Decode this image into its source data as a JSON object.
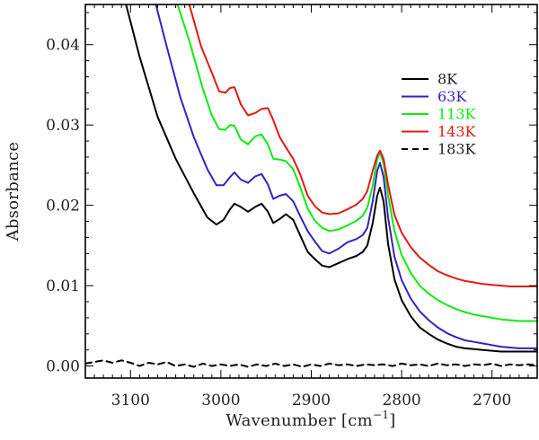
{
  "chart_data": {
    "type": "line",
    "title": "",
    "xlabel": "Wavenumber [cm",
    "xlabel_sup": "−1",
    "xlabel_close": "]",
    "ylabel": "Absorbance",
    "xlim": [
      3150,
      2650
    ],
    "ylim": [
      -0.0015,
      0.045
    ],
    "x_reversed": true,
    "grid": false,
    "legend_position": "top-right",
    "x_ticks": [
      3100,
      3000,
      2900,
      2800,
      2700
    ],
    "x_tick_labels": [
      "3100",
      "3000",
      "2900",
      "2800",
      "2700"
    ],
    "y_ticks": [
      0.0,
      0.01,
      0.02,
      0.03,
      0.04
    ],
    "y_tick_labels": [
      "0.00",
      "0.01",
      "0.02",
      "0.03",
      "0.04"
    ],
    "series": [
      {
        "name": "8K",
        "color": "#000000",
        "dash": "solid",
        "points": [
          [
            3105,
            0.045
          ],
          [
            3090,
            0.0385
          ],
          [
            3070,
            0.031
          ],
          [
            3050,
            0.0258
          ],
          [
            3030,
            0.0215
          ],
          [
            3015,
            0.0185
          ],
          [
            3005,
            0.0176
          ],
          [
            2997,
            0.0182
          ],
          [
            2990,
            0.0195
          ],
          [
            2985,
            0.0202
          ],
          [
            2978,
            0.0198
          ],
          [
            2970,
            0.0192
          ],
          [
            2962,
            0.0198
          ],
          [
            2955,
            0.0202
          ],
          [
            2948,
            0.0192
          ],
          [
            2942,
            0.0178
          ],
          [
            2935,
            0.0183
          ],
          [
            2928,
            0.0189
          ],
          [
            2920,
            0.0182
          ],
          [
            2912,
            0.0162
          ],
          [
            2904,
            0.0142
          ],
          [
            2896,
            0.0133
          ],
          [
            2888,
            0.0125
          ],
          [
            2880,
            0.0123
          ],
          [
            2870,
            0.0128
          ],
          [
            2860,
            0.0133
          ],
          [
            2850,
            0.0137
          ],
          [
            2843,
            0.0142
          ],
          [
            2838,
            0.015
          ],
          [
            2832,
            0.0178
          ],
          [
            2827,
            0.0212
          ],
          [
            2824,
            0.0222
          ],
          [
            2820,
            0.0205
          ],
          [
            2815,
            0.0152
          ],
          [
            2808,
            0.0108
          ],
          [
            2800,
            0.0082
          ],
          [
            2790,
            0.0062
          ],
          [
            2780,
            0.0048
          ],
          [
            2770,
            0.004
          ],
          [
            2760,
            0.0033
          ],
          [
            2750,
            0.0028
          ],
          [
            2740,
            0.0024
          ],
          [
            2730,
            0.0022
          ],
          [
            2720,
            0.0021
          ],
          [
            2710,
            0.002
          ],
          [
            2700,
            0.0019
          ],
          [
            2690,
            0.0018
          ],
          [
            2680,
            0.0018
          ],
          [
            2670,
            0.0018
          ],
          [
            2660,
            0.0018
          ],
          [
            2650,
            0.0018
          ]
        ]
      },
      {
        "name": "63K",
        "color": "#3a1fc0",
        "dash": "solid",
        "points": [
          [
            3072,
            0.045
          ],
          [
            3060,
            0.0398
          ],
          [
            3045,
            0.0335
          ],
          [
            3030,
            0.0285
          ],
          [
            3015,
            0.0245
          ],
          [
            3005,
            0.0225
          ],
          [
            2997,
            0.0225
          ],
          [
            2990,
            0.0235
          ],
          [
            2985,
            0.0241
          ],
          [
            2978,
            0.0232
          ],
          [
            2970,
            0.0228
          ],
          [
            2962,
            0.0236
          ],
          [
            2955,
            0.0239
          ],
          [
            2948,
            0.0226
          ],
          [
            2942,
            0.0208
          ],
          [
            2935,
            0.0212
          ],
          [
            2928,
            0.0214
          ],
          [
            2920,
            0.0205
          ],
          [
            2912,
            0.0186
          ],
          [
            2904,
            0.0168
          ],
          [
            2896,
            0.0155
          ],
          [
            2888,
            0.0143
          ],
          [
            2880,
            0.014
          ],
          [
            2870,
            0.0146
          ],
          [
            2860,
            0.0154
          ],
          [
            2850,
            0.0158
          ],
          [
            2843,
            0.0163
          ],
          [
            2838,
            0.0172
          ],
          [
            2832,
            0.0205
          ],
          [
            2827,
            0.0243
          ],
          [
            2824,
            0.0253
          ],
          [
            2820,
            0.0235
          ],
          [
            2815,
            0.0185
          ],
          [
            2808,
            0.0136
          ],
          [
            2800,
            0.0107
          ],
          [
            2790,
            0.0084
          ],
          [
            2780,
            0.0068
          ],
          [
            2770,
            0.0057
          ],
          [
            2760,
            0.0048
          ],
          [
            2750,
            0.0041
          ],
          [
            2740,
            0.0036
          ],
          [
            2730,
            0.0032
          ],
          [
            2720,
            0.003
          ],
          [
            2710,
            0.0028
          ],
          [
            2700,
            0.0026
          ],
          [
            2690,
            0.0024
          ],
          [
            2680,
            0.0023
          ],
          [
            2670,
            0.0022
          ],
          [
            2660,
            0.0022
          ],
          [
            2650,
            0.0022
          ]
        ]
      },
      {
        "name": "113K",
        "color": "#11ea11",
        "dash": "solid",
        "points": [
          [
            3048,
            0.045
          ],
          [
            3035,
            0.0405
          ],
          [
            3020,
            0.0345
          ],
          [
            3010,
            0.0312
          ],
          [
            3002,
            0.0295
          ],
          [
            2995,
            0.0294
          ],
          [
            2990,
            0.03
          ],
          [
            2985,
            0.0299
          ],
          [
            2978,
            0.0282
          ],
          [
            2970,
            0.0276
          ],
          [
            2962,
            0.0286
          ],
          [
            2955,
            0.0288
          ],
          [
            2948,
            0.0276
          ],
          [
            2942,
            0.0258
          ],
          [
            2935,
            0.0257
          ],
          [
            2928,
            0.0255
          ],
          [
            2920,
            0.0245
          ],
          [
            2912,
            0.0222
          ],
          [
            2904,
            0.0196
          ],
          [
            2896,
            0.0181
          ],
          [
            2888,
            0.0172
          ],
          [
            2880,
            0.0168
          ],
          [
            2870,
            0.017
          ],
          [
            2860,
            0.0175
          ],
          [
            2850,
            0.0181
          ],
          [
            2843,
            0.0187
          ],
          [
            2838,
            0.0197
          ],
          [
            2832,
            0.0225
          ],
          [
            2827,
            0.0257
          ],
          [
            2824,
            0.0266
          ],
          [
            2820,
            0.0252
          ],
          [
            2815,
            0.0212
          ],
          [
            2808,
            0.0168
          ],
          [
            2800,
            0.0138
          ],
          [
            2790,
            0.0116
          ],
          [
            2780,
            0.01
          ],
          [
            2770,
            0.009
          ],
          [
            2760,
            0.0082
          ],
          [
            2750,
            0.0076
          ],
          [
            2740,
            0.0071
          ],
          [
            2730,
            0.0067
          ],
          [
            2720,
            0.0064
          ],
          [
            2710,
            0.0062
          ],
          [
            2700,
            0.006
          ],
          [
            2690,
            0.0058
          ],
          [
            2680,
            0.0057
          ],
          [
            2670,
            0.0056
          ],
          [
            2660,
            0.0056
          ],
          [
            2650,
            0.0056
          ]
        ]
      },
      {
        "name": "143K",
        "color": "#e11a14",
        "dash": "solid",
        "points": [
          [
            3035,
            0.045
          ],
          [
            3022,
            0.0398
          ],
          [
            3010,
            0.0365
          ],
          [
            3002,
            0.0342
          ],
          [
            2995,
            0.034
          ],
          [
            2990,
            0.0346
          ],
          [
            2985,
            0.0347
          ],
          [
            2978,
            0.0326
          ],
          [
            2970,
            0.0312
          ],
          [
            2962,
            0.0315
          ],
          [
            2955,
            0.032
          ],
          [
            2948,
            0.0321
          ],
          [
            2942,
            0.0306
          ],
          [
            2935,
            0.0285
          ],
          [
            2928,
            0.0272
          ],
          [
            2920,
            0.0258
          ],
          [
            2912,
            0.0238
          ],
          [
            2904,
            0.0212
          ],
          [
            2896,
            0.0199
          ],
          [
            2888,
            0.0191
          ],
          [
            2880,
            0.0189
          ],
          [
            2870,
            0.019
          ],
          [
            2860,
            0.0195
          ],
          [
            2850,
            0.0201
          ],
          [
            2843,
            0.0208
          ],
          [
            2838,
            0.0218
          ],
          [
            2832,
            0.0243
          ],
          [
            2827,
            0.0262
          ],
          [
            2824,
            0.0268
          ],
          [
            2820,
            0.0258
          ],
          [
            2815,
            0.0226
          ],
          [
            2808,
            0.0188
          ],
          [
            2800,
            0.0166
          ],
          [
            2790,
            0.0148
          ],
          [
            2780,
            0.0135
          ],
          [
            2770,
            0.0126
          ],
          [
            2760,
            0.0118
          ],
          [
            2750,
            0.0113
          ],
          [
            2740,
            0.0109
          ],
          [
            2730,
            0.0106
          ],
          [
            2720,
            0.0104
          ],
          [
            2710,
            0.0102
          ],
          [
            2700,
            0.0101
          ],
          [
            2690,
            0.01
          ],
          [
            2680,
            0.0099
          ],
          [
            2670,
            0.0099
          ],
          [
            2660,
            0.0099
          ],
          [
            2650,
            0.0099
          ]
        ]
      },
      {
        "name": "183K",
        "color": "#000000",
        "dash": "dashed",
        "points": [
          [
            3150,
            0.0003
          ],
          [
            3140,
            0.0005
          ],
          [
            3130,
            0.0007
          ],
          [
            3120,
            0.0004
          ],
          [
            3110,
            0.0007
          ],
          [
            3100,
            0.0004
          ],
          [
            3090,
            0.0
          ],
          [
            3080,
            0.0004
          ],
          [
            3070,
            0.0002
          ],
          [
            3060,
            0.0005
          ],
          [
            3050,
            0.0
          ],
          [
            3040,
            0.0002
          ],
          [
            3030,
            -0.0001
          ],
          [
            3020,
            0.0003
          ],
          [
            3010,
            0.0
          ],
          [
            3000,
            0.0002
          ],
          [
            2990,
            0.0
          ],
          [
            2980,
            0.0002
          ],
          [
            2970,
            -0.0001
          ],
          [
            2960,
            0.0002
          ],
          [
            2950,
            0.0
          ],
          [
            2940,
            0.0003
          ],
          [
            2930,
            0.0
          ],
          [
            2920,
            0.0002
          ],
          [
            2910,
            -0.0001
          ],
          [
            2900,
            0.0002
          ],
          [
            2890,
            0.0
          ],
          [
            2880,
            0.0003
          ],
          [
            2870,
            0.0001
          ],
          [
            2860,
            0.0002
          ],
          [
            2850,
            0.0
          ],
          [
            2840,
            0.0002
          ],
          [
            2830,
            0.0001
          ],
          [
            2820,
            0.0002
          ],
          [
            2810,
            0.0
          ],
          [
            2800,
            0.0003
          ],
          [
            2790,
            0.0001
          ],
          [
            2780,
            0.0002
          ],
          [
            2770,
            0.0
          ],
          [
            2760,
            0.0003
          ],
          [
            2750,
            0.0001
          ],
          [
            2740,
            0.0002
          ],
          [
            2730,
            0.0
          ],
          [
            2720,
            0.0002
          ],
          [
            2710,
            0.0001
          ],
          [
            2700,
            0.0003
          ],
          [
            2690,
            0.0
          ],
          [
            2680,
            0.0002
          ],
          [
            2670,
            0.0001
          ],
          [
            2660,
            0.0002
          ],
          [
            2650,
            0.0001
          ]
        ]
      }
    ]
  }
}
